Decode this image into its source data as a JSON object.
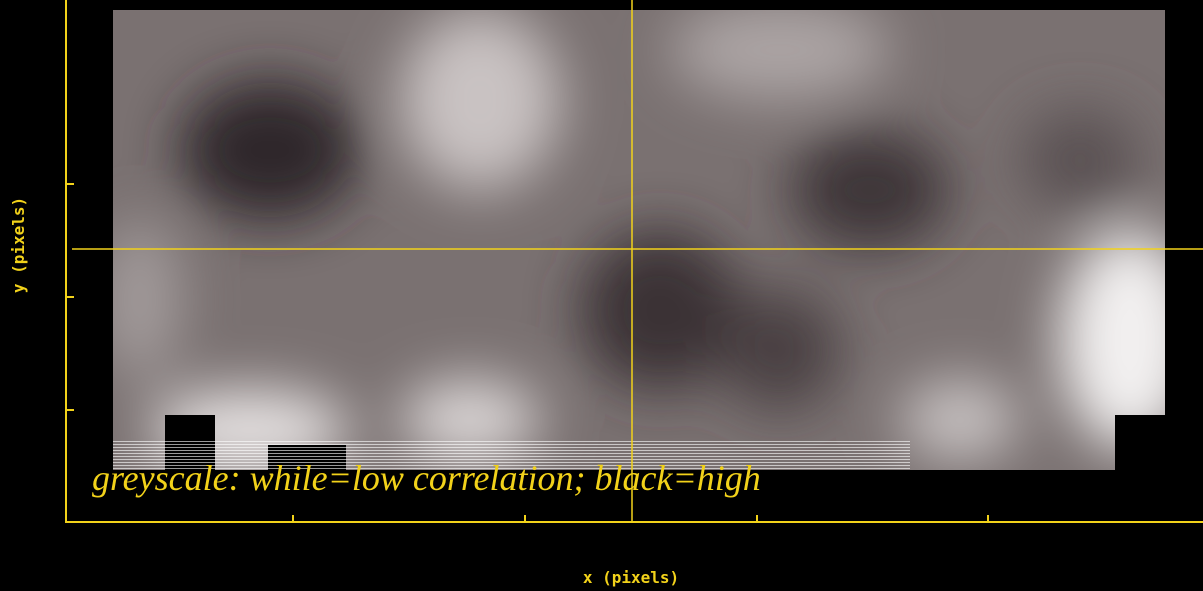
{
  "chart_data": {
    "type": "contour",
    "xlabel": "x (pixels)",
    "ylabel": "y (pixels)",
    "annotation": "greyscale: while=low correlation; black=high"
  }
}
